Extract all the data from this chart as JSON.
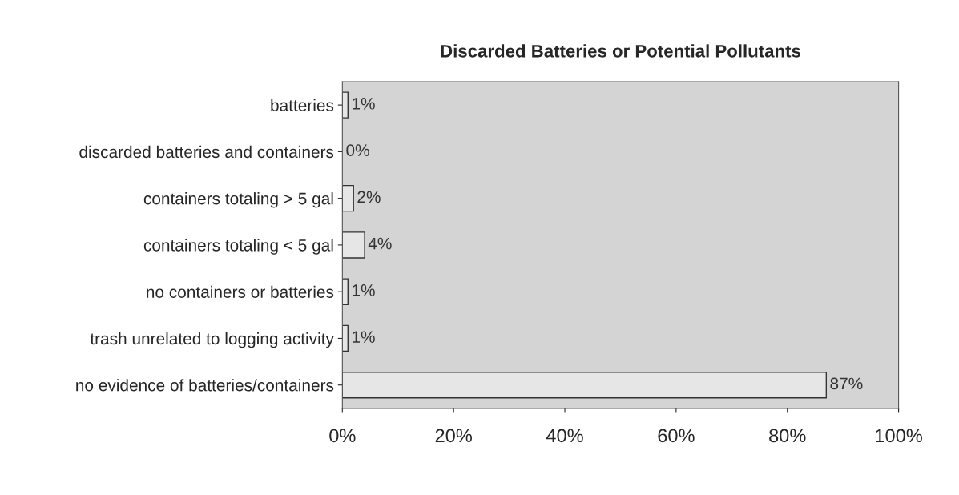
{
  "chart_data": {
    "type": "bar",
    "orientation": "horizontal",
    "title": "Discarded Batteries or Potential Pollutants",
    "categories": [
      "batteries",
      "discarded batteries and containers",
      "containers totaling > 5 gal",
      "containers totaling < 5 gal",
      "no containers or batteries",
      "trash unrelated to logging activity",
      "no evidence of batteries/containers"
    ],
    "values": [
      1,
      0,
      2,
      4,
      1,
      1,
      87
    ],
    "value_labels": [
      "1%",
      "0%",
      "2%",
      "4%",
      "1%",
      "1%",
      "87%"
    ],
    "color": "#e6e6e6",
    "xlim": [
      0,
      100
    ],
    "xticks": [
      {
        "value": 0,
        "label": "0%"
      },
      {
        "value": 20,
        "label": "20%"
      },
      {
        "value": 40,
        "label": "40%"
      },
      {
        "value": 60,
        "label": "60%"
      },
      {
        "value": 80,
        "label": "80%"
      },
      {
        "value": 100,
        "label": "100%"
      }
    ],
    "grid": false,
    "legend": false
  }
}
